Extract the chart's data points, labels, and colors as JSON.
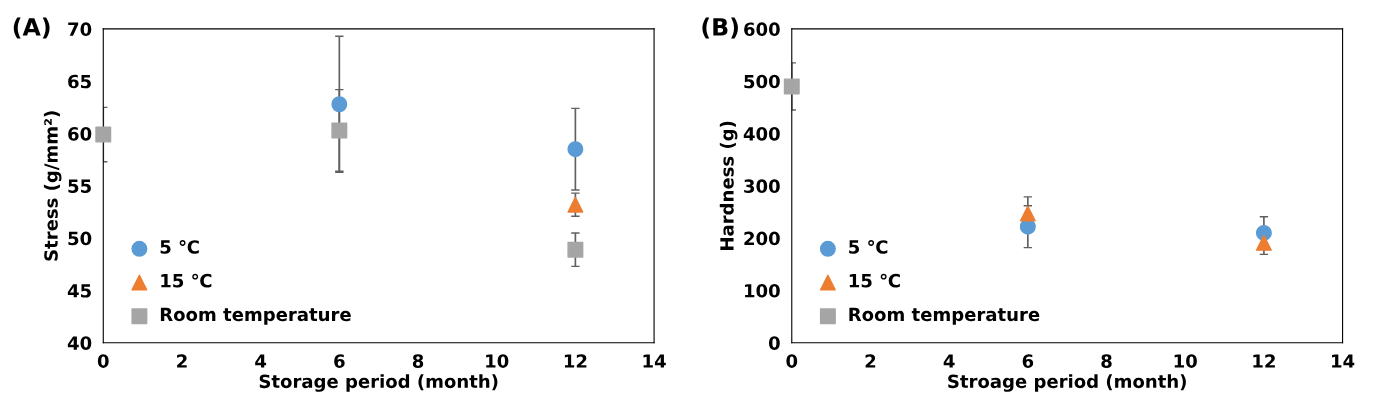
{
  "chart_data": [
    {
      "type": "scatter",
      "annotations": [
        "(A)"
      ],
      "xlabel": "Storage period (month)",
      "ylabel": "Stress (g/mm²)",
      "xlim": [
        0,
        14
      ],
      "xticks": [
        0,
        2,
        4,
        6,
        8,
        10,
        12,
        14
      ],
      "ylim": [
        40,
        70
      ],
      "yticks": [
        40,
        45,
        50,
        55,
        60,
        65,
        70
      ],
      "grid": false,
      "legend": "bottom left",
      "series": [
        {
          "name": "5 ℃",
          "color": "#5b9bd5",
          "marker": "circle",
          "x": [
            6,
            12
          ],
          "values": [
            62.8,
            58.5
          ],
          "errors": [
            6.5,
            3.9
          ]
        },
        {
          "name": "15 ℃",
          "color": "#ed7d31",
          "marker": "triangle",
          "x": [
            12
          ],
          "values": [
            53.2
          ],
          "errors": [
            1.1
          ]
        },
        {
          "name": "Room temperature",
          "color": "#a5a5a5",
          "marker": "square",
          "x": [
            0,
            6,
            12
          ],
          "values": [
            59.9,
            60.3,
            48.9
          ],
          "errors": [
            2.6,
            3.9,
            1.6
          ]
        }
      ]
    },
    {
      "type": "scatter",
      "annotations": [
        "(B)"
      ],
      "xlabel": "Stroage period (month)",
      "ylabel": "Hardness (g)",
      "xlim": [
        0,
        14
      ],
      "xticks": [
        0,
        2,
        4,
        6,
        8,
        10,
        12,
        14
      ],
      "ylim": [
        0,
        600
      ],
      "yticks": [
        0,
        100,
        200,
        300,
        400,
        500,
        600
      ],
      "grid": false,
      "legend": "bottom left",
      "series": [
        {
          "name": "5 ℃",
          "color": "#5b9bd5",
          "marker": "circle",
          "x": [
            6,
            12
          ],
          "values": [
            222,
            210
          ],
          "errors": [
            40,
            31
          ]
        },
        {
          "name": "15 ℃",
          "color": "#ed7d31",
          "marker": "triangle",
          "x": [
            6,
            12
          ],
          "values": [
            247,
            191
          ],
          "errors": [
            32,
            22
          ]
        },
        {
          "name": "Room temperature",
          "color": "#a5a5a5",
          "marker": "square",
          "x": [
            0
          ],
          "values": [
            490
          ],
          "errors": [
            45
          ]
        }
      ]
    }
  ]
}
